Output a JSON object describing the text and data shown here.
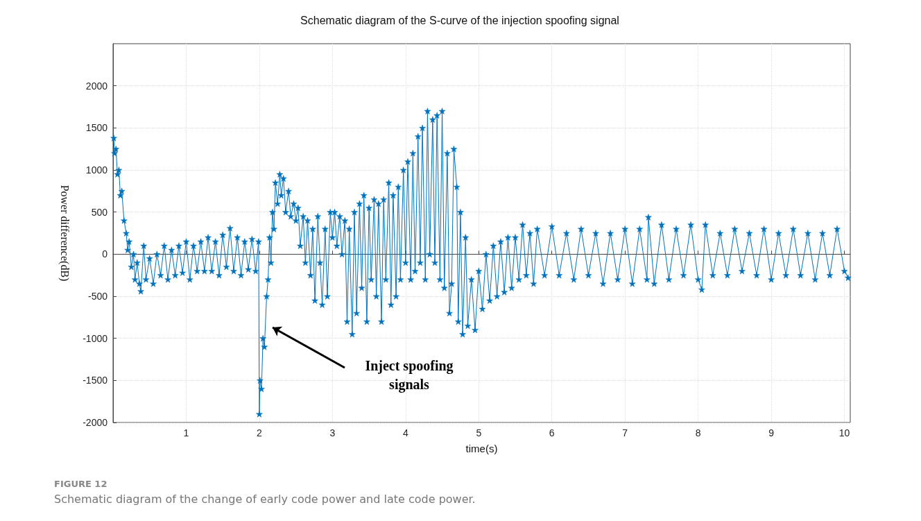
{
  "chart_data": {
    "type": "line",
    "title": "Schematic diagram of the S-curve of the injection spoofing signal",
    "xlabel": "time(s)",
    "ylabel": "Power difference(dB)",
    "xlim": [
      0,
      10.08
    ],
    "xticks": [
      1,
      2,
      3,
      4,
      5,
      6,
      7,
      8,
      9,
      10
    ],
    "ylim": [
      -2000,
      2500
    ],
    "yticks": [
      -2000,
      -1500,
      -1000,
      -500,
      0,
      500,
      1000,
      1500,
      2000
    ],
    "grid": true,
    "marker": "star",
    "line_style": "solid",
    "series": [
      {
        "color": "#0072bd",
        "x": [
          0.01,
          0.02,
          0.04,
          0.06,
          0.08,
          0.1,
          0.12,
          0.15,
          0.18,
          0.2,
          0.22,
          0.25,
          0.28,
          0.3,
          0.33,
          0.36,
          0.38,
          0.42,
          0.45,
          0.5,
          0.55,
          0.6,
          0.65,
          0.7,
          0.75,
          0.8,
          0.85,
          0.9,
          0.95,
          1.0,
          1.05,
          1.1,
          1.15,
          1.2,
          1.25,
          1.3,
          1.35,
          1.4,
          1.45,
          1.5,
          1.55,
          1.6,
          1.65,
          1.7,
          1.75,
          1.8,
          1.85,
          1.9,
          1.95,
          1.99,
          2.0,
          2.01,
          2.03,
          2.05,
          2.07,
          2.1,
          2.12,
          2.14,
          2.16,
          2.18,
          2.2,
          2.22,
          2.25,
          2.28,
          2.3,
          2.33,
          2.36,
          2.4,
          2.43,
          2.47,
          2.5,
          2.53,
          2.56,
          2.6,
          2.63,
          2.66,
          2.7,
          2.73,
          2.76,
          2.8,
          2.83,
          2.86,
          2.9,
          2.93,
          2.97,
          3.0,
          3.03,
          3.06,
          3.1,
          3.13,
          3.17,
          3.2,
          3.23,
          3.27,
          3.3,
          3.33,
          3.37,
          3.4,
          3.43,
          3.47,
          3.5,
          3.53,
          3.57,
          3.6,
          3.63,
          3.67,
          3.7,
          3.73,
          3.77,
          3.8,
          3.83,
          3.87,
          3.9,
          3.93,
          3.97,
          4.0,
          4.03,
          4.07,
          4.1,
          4.13,
          4.17,
          4.2,
          4.23,
          4.27,
          4.3,
          4.33,
          4.37,
          4.4,
          4.43,
          4.47,
          4.5,
          4.53,
          4.57,
          4.6,
          4.63,
          4.66,
          4.7,
          4.72,
          4.75,
          4.78,
          4.82,
          4.85,
          4.9,
          4.95,
          5.0,
          5.05,
          5.1,
          5.15,
          5.2,
          5.25,
          5.3,
          5.35,
          5.4,
          5.45,
          5.5,
          5.55,
          5.6,
          5.65,
          5.7,
          5.75,
          5.8,
          5.9,
          6.0,
          6.1,
          6.2,
          6.3,
          6.4,
          6.5,
          6.6,
          6.7,
          6.8,
          6.9,
          7.0,
          7.1,
          7.2,
          7.3,
          7.32,
          7.4,
          7.5,
          7.6,
          7.7,
          7.8,
          7.9,
          8.0,
          8.05,
          8.1,
          8.2,
          8.3,
          8.4,
          8.5,
          8.6,
          8.7,
          8.8,
          8.9,
          9.0,
          9.1,
          9.2,
          9.3,
          9.4,
          9.5,
          9.6,
          9.7,
          9.8,
          9.9,
          10.0,
          10.05
        ],
        "values": [
          1380,
          1200,
          1250,
          950,
          1000,
          700,
          750,
          400,
          250,
          50,
          150,
          -150,
          0,
          -300,
          -100,
          -350,
          -440,
          100,
          -300,
          -50,
          -350,
          0,
          -250,
          100,
          -300,
          50,
          -250,
          100,
          -220,
          150,
          -300,
          100,
          -200,
          150,
          -200,
          200,
          -200,
          150,
          -250,
          230,
          -150,
          310,
          -200,
          200,
          -250,
          150,
          -180,
          180,
          -200,
          150,
          -1900,
          -1500,
          -1600,
          -1000,
          -1100,
          -500,
          -300,
          200,
          -100,
          500,
          300,
          850,
          600,
          950,
          700,
          900,
          500,
          750,
          450,
          600,
          400,
          550,
          100,
          450,
          -100,
          400,
          -250,
          300,
          -550,
          450,
          -100,
          -600,
          300,
          -500,
          500,
          200,
          500,
          100,
          450,
          0,
          400,
          -800,
          300,
          -950,
          500,
          -700,
          600,
          -400,
          700,
          -800,
          550,
          -300,
          650,
          -500,
          600,
          -800,
          650,
          -300,
          850,
          -600,
          700,
          -500,
          800,
          -300,
          1000,
          -100,
          1100,
          -300,
          1200,
          -200,
          1400,
          -100,
          1500,
          -300,
          1700,
          0,
          1600,
          -100,
          1650,
          -300,
          1700,
          -400,
          1200,
          -700,
          -350,
          1250,
          800,
          -800,
          500,
          -950,
          200,
          -850,
          -300,
          -900,
          -200,
          -650,
          0,
          -550,
          100,
          -500,
          150,
          -450,
          200,
          -400,
          200,
          -300,
          350,
          -250,
          250,
          -350,
          300,
          -250,
          330,
          -250,
          250,
          -300,
          300,
          -250,
          250,
          -350,
          250,
          -300,
          300,
          -350,
          300,
          -300,
          440,
          -350,
          350,
          -300,
          300,
          -250,
          350,
          -300,
          -420,
          350,
          -250,
          250,
          -250,
          300,
          -200,
          250,
          -250,
          300,
          -300,
          250,
          -250,
          300,
          -250,
          250,
          -300,
          250,
          -250,
          300,
          -200,
          -280
        ]
      }
    ],
    "annotations": [
      "Inject spoofing\nsignals",
      "FIGURE 12",
      "Schematic diagram of the change of early code power and late code power."
    ]
  }
}
